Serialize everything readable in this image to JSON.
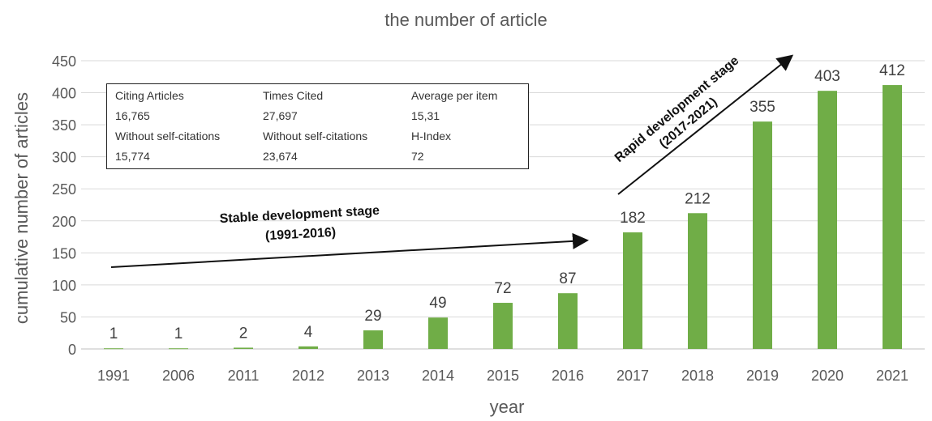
{
  "chart_data": {
    "type": "bar",
    "title": "the number of article",
    "xlabel": "year",
    "ylabel": "cumulative number of articles",
    "categories": [
      "1991",
      "2006",
      "2011",
      "2012",
      "2013",
      "2014",
      "2015",
      "2016",
      "2017",
      "2018",
      "2019",
      "2020",
      "2021"
    ],
    "values": [
      1,
      1,
      2,
      4,
      29,
      49,
      72,
      87,
      182,
      212,
      355,
      403,
      412
    ],
    "ylim": [
      0,
      450
    ],
    "yticks": [
      "0",
      "50",
      "100",
      "150",
      "200",
      "250",
      "300",
      "350",
      "400",
      "450"
    ],
    "grid": true,
    "bar_color": "#70ad47",
    "annotations": {
      "stable": [
        "Stable development stage",
        "(1991-2016)"
      ],
      "rapid": [
        "Rapid development stage",
        "(2017-2021)"
      ]
    }
  },
  "stats": {
    "rows": [
      [
        "Citing Articles",
        "Times Cited",
        "Average per item"
      ],
      [
        "16,765",
        "27,697",
        "15,31"
      ],
      [
        "Without self-citations",
        "Without self-citations",
        "H-Index"
      ],
      [
        "15,774",
        "23,674",
        "72"
      ]
    ]
  }
}
